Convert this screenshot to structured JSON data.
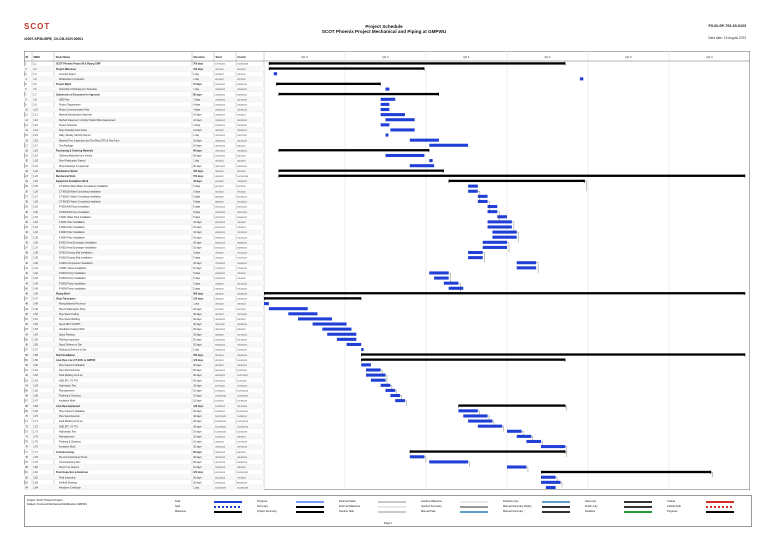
{
  "header": {
    "logo_text": "SCOT",
    "doc_left": "#2007-SP36-WFB_C0-CM-SCH-00001",
    "title_line1": "Project Schedule",
    "title_line2": "SCOT Phoenix Project Mechanical and Piping at GMPWU",
    "doc_right": "PX-ID-SP-7S1-00-0103",
    "date_right": "Data date: 15 August 2023"
  },
  "columns": [
    "ID",
    "WBS",
    "Task Name",
    "Duration",
    "Start",
    "Finish"
  ],
  "timeline_labels": [
    "Qtr 3",
    "Qtr 4",
    "Qtr 1",
    "Qtr 2",
    "Qtr 3",
    "Qtr 4"
  ],
  "tasks": [
    {
      "name": "SCOT Phoenix Project M & Piping GMP",
      "dur": "700 days",
      "start": "1/27/2022",
      "finish": "10/20/2024",
      "type": "summary",
      "s": 0.01,
      "e": 0.62
    },
    {
      "name": "Project Milestone",
      "dur": "155 days",
      "start": "2/2/2022",
      "finish": "8/7/2022",
      "type": "summary",
      "s": 0.01,
      "e": 0.33
    },
    {
      "name": "Contract Award",
      "dur": "1 day",
      "start": "2/3/2022",
      "finish": "2/3/2022",
      "type": "task",
      "s": 0.02,
      "e": 0.027
    },
    {
      "name": "Mobilization Completion",
      "dur": "1 day",
      "start": "8/7/2022",
      "finish": "8/7/2022",
      "type": "task",
      "s": 0.65,
      "e": 0.657
    },
    {
      "name": "Project Mgmt",
      "dur": "31 days",
      "start": "2/16/2022",
      "finish": "3/18/2022",
      "type": "summary",
      "s": 0.025,
      "e": 0.24
    },
    {
      "name": "Submittal of Working Item Schedule",
      "dur": "1 day",
      "start": "2/16/2022",
      "finish": "2/16/2022",
      "type": "task",
      "s": 0.25,
      "e": 0.258
    },
    {
      "name": "Submission of Document for Approval",
      "dur": "85 days",
      "start": "2/18/2022",
      "finish": "6/29/2022",
      "type": "summary",
      "s": 0.03,
      "e": 0.36
    },
    {
      "name": "HSE Plan",
      "dur": "7 days",
      "start": "2/18/2022",
      "finish": "2/27/2022",
      "type": "task",
      "s": 0.24,
      "e": 0.27
    },
    {
      "name": "Project Organization",
      "dur": "4 days",
      "start": "2/18/2022",
      "finish": "2/23/2022",
      "type": "task",
      "s": 0.24,
      "e": 0.258
    },
    {
      "name": "Project Communication Plan",
      "dur": "4 days",
      "start": "2/18/2022",
      "finish": "2/23/2022",
      "type": "task",
      "s": 0.24,
      "e": 0.258
    },
    {
      "name": "Material Specification Approval",
      "dur": "14 days",
      "start": "2/18/2022",
      "finish": "3/7/2022",
      "type": "task",
      "s": 0.24,
      "e": 0.29
    },
    {
      "name": "Method Statement / Activity Hazard Risk Assessment",
      "dur": "14 days",
      "start": "2/24/2022",
      "finish": "3/15/2022",
      "type": "task",
      "s": 0.25,
      "e": 0.31
    },
    {
      "name": "Project Schedule",
      "dur": "4 days",
      "start": "2/18/2022",
      "finish": "2/23/2022",
      "type": "task",
      "s": 0.24,
      "e": 0.258
    },
    {
      "name": "Shop Drawing Submission",
      "dur": "14 days",
      "start": "3/2/2022",
      "finish": "3/19/2022",
      "type": "task",
      "s": 0.26,
      "e": 0.31
    },
    {
      "name": "Daily, Weekly, Monthly Report",
      "dur": "1 day",
      "start": "2/21/2022",
      "finish": "2/21/2022",
      "type": "task",
      "s": 0.25,
      "e": 0.256
    },
    {
      "name": "Material Test, Inspection and Test Plan (ITP) & Test Form",
      "dur": "14 days",
      "start": "3/24/2022",
      "finish": "4/12/2022",
      "type": "task",
      "s": 0.3,
      "e": 0.36
    },
    {
      "name": "Test Package",
      "dur": "14 days",
      "start": "4/15/2022",
      "finish": "5/4/2022",
      "type": "task",
      "s": 0.34,
      "e": 0.42
    },
    {
      "name": "Purchasing & Ordering Materials",
      "dur": "60 days",
      "start": "2/21/2022",
      "finish": "5/14/2022",
      "type": "summary",
      "s": 0.03,
      "e": 0.34
    },
    {
      "name": "Ordering Materials from Vendor",
      "dur": "30 days",
      "start": "2/21/2022",
      "finish": "4/1/2022",
      "type": "task",
      "s": 0.25,
      "e": 0.33
    },
    {
      "name": "Steel Fabrication Started",
      "dur": "1 day",
      "start": "4/1/2022",
      "finish": "4/1/2022",
      "type": "task",
      "s": 0.34,
      "e": 0.347
    },
    {
      "name": "Shop Drawings for Approval",
      "dur": "20 days",
      "start": "3/21/2022",
      "finish": "4/15/2022",
      "type": "task",
      "s": 0.3,
      "e": 0.35
    },
    {
      "name": "Mobilization Works",
      "dur": "155 days",
      "start": "2/4/2022",
      "finish": "8/7/2022",
      "type": "summary",
      "s": 0.03,
      "e": 0.37
    },
    {
      "name": "Mechanical Work",
      "dur": "700 days",
      "start": "2/4/2022",
      "finish": "10/20/2024",
      "type": "summary",
      "s": 0.03,
      "e": 0.99
    },
    {
      "name": "Equipment Installation Work",
      "dur": "43 days",
      "start": "6/1/2022",
      "finish": "7/29/2022",
      "type": "summary",
      "s": 0.38,
      "e": 0.66
    },
    {
      "name": "CT-9001A (Main Water Circulation) Installation",
      "dur": "5 days",
      "start": "6/1/2022",
      "finish": "6/7/2022",
      "type": "task",
      "s": 0.42,
      "e": 0.44
    },
    {
      "name": "CT-9001B Water Circulating Installation",
      "dur": "5 days",
      "start": "6/1/2022",
      "finish": "6/7/2022",
      "type": "task",
      "s": 0.42,
      "e": 0.44
    },
    {
      "name": "CT-9001C Water Circulating Installation",
      "dur": "5 days",
      "start": "6/8/2022",
      "finish": "6/14/2022",
      "type": "task",
      "s": 0.44,
      "e": 0.46
    },
    {
      "name": "CT-9001D Water Circulating Installation",
      "dur": "5 days",
      "start": "6/8/2022",
      "finish": "6/14/2022",
      "type": "task",
      "s": 0.44,
      "e": 0.46
    },
    {
      "name": "P-9001A/B Pump Installation",
      "dur": "5 days",
      "start": "6/15/2022",
      "finish": "6/21/2022",
      "type": "task",
      "s": 0.46,
      "e": 0.48
    },
    {
      "name": "P-9002A/B Pump Installation",
      "dur": "5 days",
      "start": "6/15/2022",
      "finish": "6/21/2022",
      "type": "task",
      "s": 0.46,
      "e": 0.48
    },
    {
      "name": "T-9001 Water Tank Installation",
      "dur": "5 days",
      "start": "6/22/2022",
      "finish": "6/28/2022",
      "type": "task",
      "s": 0.48,
      "e": 0.5
    },
    {
      "name": "F-9001 Filter Installation",
      "dur": "10 days",
      "start": "6/22/2022",
      "finish": "7/5/2022",
      "type": "task",
      "s": 0.46,
      "e": 0.51
    },
    {
      "name": "F-9002 Filter Installation",
      "dur": "10 days",
      "start": "6/22/2022",
      "finish": "7/5/2022",
      "type": "task",
      "s": 0.46,
      "e": 0.51
    },
    {
      "name": "F-9003 Filter Installation",
      "dur": "10 days",
      "start": "6/29/2022",
      "finish": "7/12/2022",
      "type": "task",
      "s": 0.47,
      "e": 0.52
    },
    {
      "name": "F-9004 Filter Installation",
      "dur": "10 days",
      "start": "6/29/2022",
      "finish": "7/12/2022",
      "type": "task",
      "s": 0.47,
      "e": 0.52
    },
    {
      "name": "E-9001 Heat Exchanger Installation",
      "dur": "10 days",
      "start": "6/15/2022",
      "finish": "6/28/2022",
      "type": "task",
      "s": 0.45,
      "e": 0.5
    },
    {
      "name": "E-9002 Heat Exchanger Installation",
      "dur": "10 days",
      "start": "6/15/2022",
      "finish": "6/28/2022",
      "type": "task",
      "s": 0.45,
      "e": 0.5
    },
    {
      "name": "D-9001 Dosing Skid Installation",
      "dur": "5 days",
      "start": "7/6/2022",
      "finish": "7/12/2022",
      "type": "task",
      "s": 0.42,
      "e": 0.45
    },
    {
      "name": "D-9002 Dosing Skid Installation",
      "dur": "5 days",
      "start": "7/6/2022",
      "finish": "7/12/2022",
      "type": "task",
      "s": 0.42,
      "e": 0.45
    },
    {
      "name": "C-9001 Compressor Installation",
      "dur": "10 days",
      "start": "7/13/2022",
      "finish": "7/26/2022",
      "type": "task",
      "s": 0.52,
      "e": 0.56
    },
    {
      "name": "V-9001 Vessel Installation",
      "dur": "10 days",
      "start": "7/13/2022",
      "finish": "7/26/2022",
      "type": "task",
      "s": 0.52,
      "e": 0.56
    },
    {
      "name": "P-9003 Pump Installation",
      "dur": "5 days",
      "start": "6/29/2022",
      "finish": "7/5/2022",
      "type": "task",
      "s": 0.34,
      "e": 0.38
    },
    {
      "name": "P-9004 Pump Installation",
      "dur": "5 days",
      "start": "6/29/2022",
      "finish": "7/5/2022",
      "type": "task",
      "s": 0.35,
      "e": 0.38
    },
    {
      "name": "P-9005 Pump Installation",
      "dur": "5 days",
      "start": "7/6/2022",
      "finish": "7/12/2022",
      "type": "task",
      "s": 0.37,
      "e": 0.4
    },
    {
      "name": "P-9006 Pump Installation",
      "dur": "5 days",
      "start": "7/6/2022",
      "finish": "7/12/2022",
      "type": "task",
      "s": 0.38,
      "e": 0.41
    },
    {
      "name": "Piping Work",
      "dur": "600 days",
      "start": "2/4/2022",
      "finish": "6/20/2024",
      "type": "summary",
      "s": 0.0,
      "e": 0.99
    },
    {
      "name": "Shop Fabrication",
      "dur": "120 days",
      "start": "2/4/2022",
      "finish": "7/20/2022",
      "type": "summary",
      "s": 0.0,
      "e": 0.2
    },
    {
      "name": "Piping Material Received",
      "dur": "1 day",
      "start": "2/4/2022",
      "finish": "2/4/2022",
      "type": "task",
      "s": 0.0,
      "e": 0.01
    },
    {
      "name": "Pipe Prefabrication Shop",
      "dur": "40 days",
      "start": "2/7/2022",
      "finish": "4/1/2022",
      "type": "task",
      "s": 0.01,
      "e": 0.09
    },
    {
      "name": "Pipe Spool Cutting",
      "dur": "30 days",
      "start": "3/1/2022",
      "finish": "4/11/2022",
      "type": "task",
      "s": 0.05,
      "e": 0.11
    },
    {
      "name": "Pipe Spool Welding",
      "dur": "40 days",
      "start": "3/15/2022",
      "finish": "5/9/2022",
      "type": "task",
      "s": 0.07,
      "e": 0.14
    },
    {
      "name": "Spool NDT & PWHT",
      "dur": "30 days",
      "start": "4/11/2022",
      "finish": "5/20/2022",
      "type": "task",
      "s": 0.1,
      "e": 0.17
    },
    {
      "name": "Sandblast Coating Work",
      "dur": "30 days",
      "start": "4/25/2022",
      "finish": "6/3/2022",
      "type": "task",
      "s": 0.12,
      "e": 0.18
    },
    {
      "name": "Spool Painting",
      "dur": "30 days",
      "start": "5/9/2022",
      "finish": "6/17/2022",
      "type": "task",
      "s": 0.13,
      "e": 0.19
    },
    {
      "name": "Painting Inspection",
      "dur": "20 days",
      "start": "5/23/2022",
      "finish": "6/17/2022",
      "type": "task",
      "s": 0.15,
      "e": 0.19
    },
    {
      "name": "Spool Delivery to Site",
      "dur": "20 days",
      "start": "6/20/2022",
      "finish": "7/15/2022",
      "type": "task",
      "s": 0.17,
      "e": 0.2
    },
    {
      "name": "Packing & Delivery to Site",
      "dur": "1 day",
      "start": "7/20/2022",
      "finish": "7/20/2022",
      "type": "task",
      "s": 0.2,
      "e": 0.205
    },
    {
      "name": "Field Installation",
      "dur": "500 days",
      "start": "8/1/2022",
      "finish": "6/20/2024",
      "type": "summary",
      "s": 0.2,
      "e": 0.99
    },
    {
      "name": "Area Pipe Line (CT-9001 to GMPW)",
      "dur": "120 days",
      "start": "8/1/2022",
      "finish": "1/13/2023",
      "type": "summary",
      "s": 0.2,
      "e": 0.62
    },
    {
      "name": "Pipe Support Installation",
      "dur": "40 days",
      "start": "8/1/2022",
      "finish": "9/23/2022",
      "type": "task",
      "s": 0.2,
      "e": 0.22
    },
    {
      "name": "Pipe Spool Erection",
      "dur": "60 days",
      "start": "8/15/2022",
      "finish": "11/4/2022",
      "type": "task",
      "s": 0.21,
      "e": 0.24
    },
    {
      "name": "Field Welding & Fit-up",
      "dur": "60 days",
      "start": "8/22/2022",
      "finish": "11/11/2022",
      "type": "task",
      "s": 0.21,
      "e": 0.25
    },
    {
      "name": "NDE (RT, UT, PT)",
      "dur": "40 days",
      "start": "9/12/2022",
      "finish": "11/4/2022",
      "type": "task",
      "s": 0.22,
      "e": 0.25
    },
    {
      "name": "Hydrostatic Test",
      "dur": "20 days",
      "start": "11/7/2022",
      "finish": "12/2/2022",
      "type": "task",
      "s": 0.24,
      "e": 0.26
    },
    {
      "name": "Reinstatement",
      "dur": "10 days",
      "start": "12/5/2022",
      "finish": "12/16/2022",
      "type": "task",
      "s": 0.25,
      "e": 0.27
    },
    {
      "name": "Flushing & Cleaning",
      "dur": "10 days",
      "start": "12/19/2022",
      "finish": "12/30/2022",
      "type": "task",
      "s": 0.26,
      "e": 0.28
    },
    {
      "name": "Insulation Work",
      "dur": "10 days",
      "start": "1/2/2023",
      "finish": "1/13/2023",
      "type": "task",
      "s": 0.27,
      "e": 0.29
    },
    {
      "name": "Area Pipe Equipment",
      "dur": "120 days",
      "start": "10/3/2022",
      "finish": "3/17/2023",
      "type": "summary",
      "s": 0.4,
      "e": 0.62
    },
    {
      "name": "Pipe Support Installation",
      "dur": "40 days",
      "start": "10/3/2022",
      "finish": "11/25/2022",
      "type": "task",
      "s": 0.4,
      "e": 0.44
    },
    {
      "name": "Pipe Spool Erection",
      "dur": "40 days",
      "start": "10/17/2022",
      "finish": "12/9/2022",
      "type": "task",
      "s": 0.41,
      "e": 0.46
    },
    {
      "name": "Field Welding & Fit-up",
      "dur": "40 days",
      "start": "10/24/2022",
      "finish": "12/16/2022",
      "type": "task",
      "s": 0.42,
      "e": 0.47
    },
    {
      "name": "NDE (RT, UT, PT)",
      "dur": "30 days",
      "start": "11/14/2022",
      "finish": "12/23/2022",
      "type": "task",
      "s": 0.44,
      "e": 0.49
    },
    {
      "name": "Hydrostatic Test",
      "dur": "20 days",
      "start": "12/26/2022",
      "finish": "1/20/2023",
      "type": "task",
      "s": 0.5,
      "e": 0.53
    },
    {
      "name": "Reinstatement",
      "dur": "10 days",
      "start": "1/23/2023",
      "finish": "2/3/2023",
      "type": "task",
      "s": 0.52,
      "e": 0.55
    },
    {
      "name": "Flushing & Cleaning",
      "dur": "10 days",
      "start": "2/6/2023",
      "finish": "2/17/2023",
      "type": "task",
      "s": 0.54,
      "e": 0.57
    },
    {
      "name": "Insulation Work",
      "dur": "20 days",
      "start": "2/20/2023",
      "finish": "3/17/2023",
      "type": "task",
      "s": 0.57,
      "e": 0.62
    },
    {
      "name": "Commissioning",
      "dur": "60 days",
      "start": "3/20/2023",
      "finish": "6/9/2023",
      "type": "summary",
      "s": 0.3,
      "e": 0.62
    },
    {
      "name": "Pre-Commissioning Check",
      "dur": "20 days",
      "start": "3/20/2023",
      "finish": "4/14/2023",
      "type": "task",
      "s": 0.3,
      "e": 0.33
    },
    {
      "name": "Commissioning Run",
      "dur": "30 days",
      "start": "4/17/2023",
      "finish": "5/26/2023",
      "type": "task",
      "s": 0.34,
      "e": 0.42
    },
    {
      "name": "Punch List Closure",
      "dur": "10 days",
      "start": "5/29/2023",
      "finish": "6/9/2023",
      "type": "task",
      "s": 0.5,
      "e": 0.54
    },
    {
      "name": "Final Inspection & Handover",
      "dur": "120 days",
      "start": "6/12/2023",
      "finish": "11/24/2023",
      "type": "summary",
      "s": 0.57,
      "e": 0.92
    },
    {
      "name": "Final Inspection",
      "dur": "20 days",
      "start": "6/12/2023",
      "finish": "7/7/2023",
      "type": "task",
      "s": 0.57,
      "e": 0.6
    },
    {
      "name": "As-Built Drawing",
      "dur": "30 days",
      "start": "7/10/2023",
      "finish": "8/18/2023",
      "type": "task",
      "s": 0.57,
      "e": 0.61
    },
    {
      "name": "Handover Certificate",
      "dur": "1 day",
      "start": "11/24/2023",
      "finish": "11/24/2023",
      "type": "task",
      "s": 0.58,
      "e": 0.6
    }
  ],
  "legend": {
    "project_line1": "Project: SCOT Phoenix Project",
    "project_line2": "Subject: Final and Mechanical Modification GMPWU",
    "col1": [
      "Task",
      "Split",
      "Milestone"
    ],
    "col2": [
      "Progress",
      "Summary",
      "Project Summary"
    ],
    "col3": [
      "External Tasks",
      "External Milestone",
      "Inactive Task"
    ],
    "col4": [
      "Inactive Milestone",
      "Inactive Summary",
      "Manual Task"
    ],
    "col5": [
      "Duration-only",
      "Manual Summary Rollup",
      "Manual Summary"
    ],
    "col6": [
      "Start-only",
      "Finish-only",
      "Deadline"
    ],
    "col7": [
      "Critical",
      "Critical Split",
      "Progress"
    ],
    "page": "Page 1"
  },
  "colors": {
    "task": "#1f3fd6",
    "summary": "#000000",
    "grid": "#bbbbbb",
    "accent": "#c0392b"
  }
}
